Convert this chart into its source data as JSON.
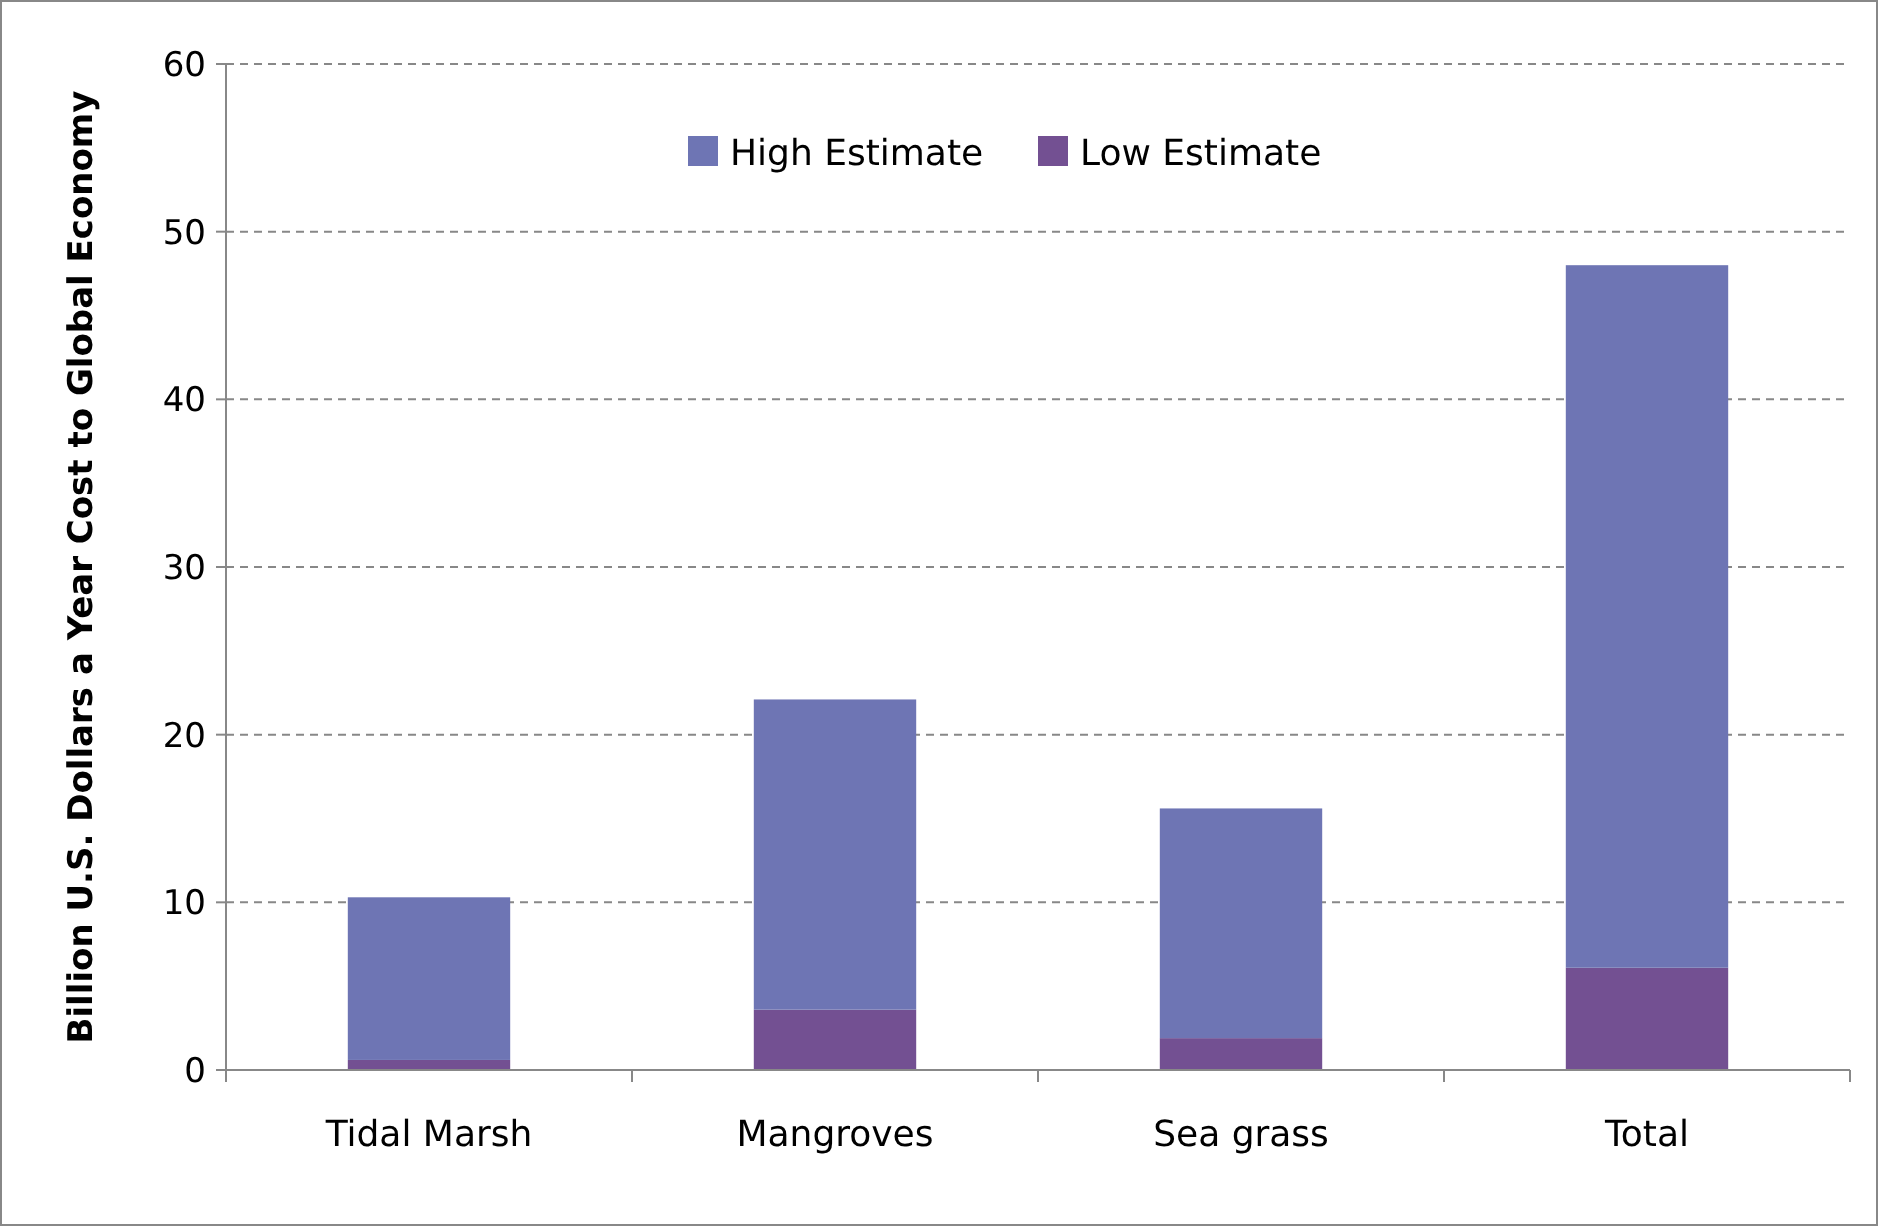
{
  "chart_data": {
    "type": "bar",
    "ylabel": "Billion U.S. Dollars a Year Cost to Global Economy",
    "categories": [
      "Tidal Marsh",
      "Mangroves",
      "Sea grass",
      "Total"
    ],
    "stacked": true,
    "series": [
      {
        "name": "Low Estimate",
        "color": "#735092",
        "values": [
          0.6,
          3.6,
          1.9,
          6.1
        ]
      },
      {
        "name": "High Estimate",
        "color": "#6e75b4",
        "values": [
          9.7,
          18.5,
          13.7,
          41.9
        ]
      }
    ],
    "ylim": [
      0,
      60
    ],
    "yticks": [
      0,
      10,
      20,
      30,
      40,
      50,
      60
    ],
    "grid": "y",
    "legend": "top"
  }
}
